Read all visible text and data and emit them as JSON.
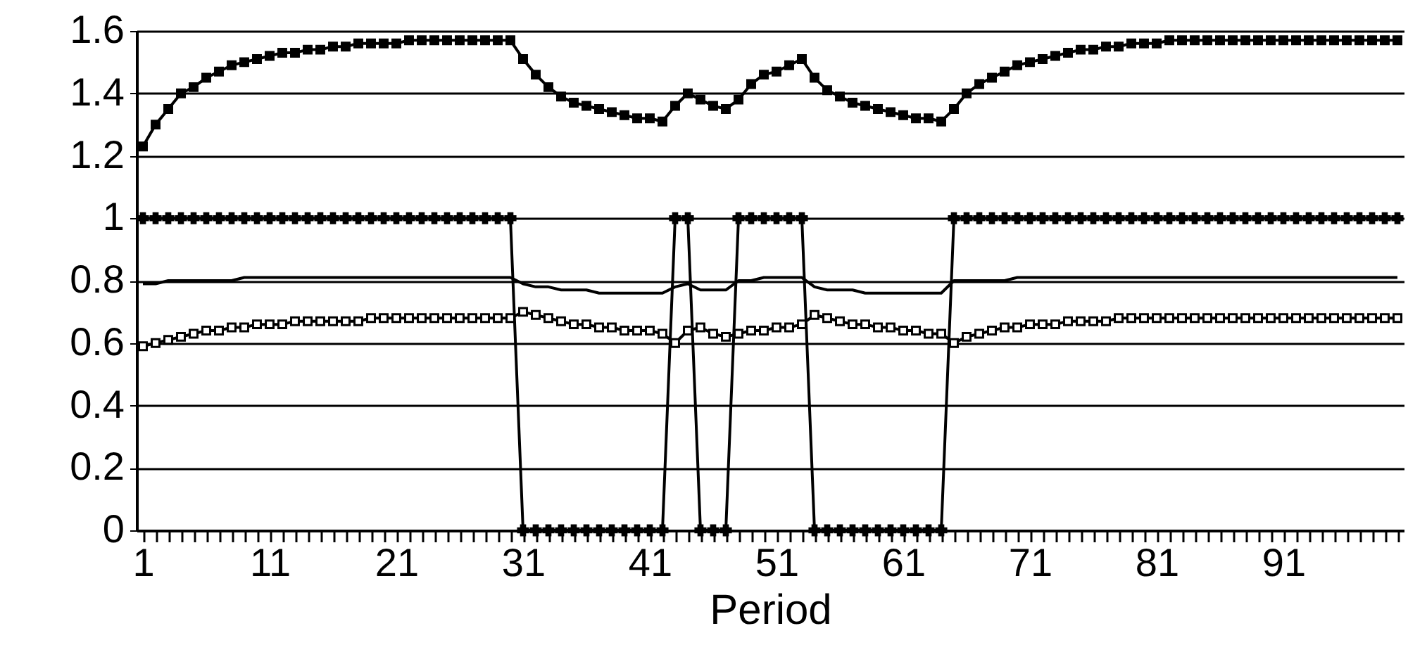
{
  "chart_data": {
    "type": "line",
    "xlabel": "Period",
    "categories": [
      "1",
      null,
      null,
      null,
      null,
      null,
      null,
      null,
      null,
      null,
      "11",
      null,
      null,
      null,
      null,
      null,
      null,
      null,
      null,
      null,
      "21",
      null,
      null,
      null,
      null,
      null,
      null,
      null,
      null,
      null,
      "31",
      null,
      null,
      null,
      null,
      null,
      null,
      null,
      null,
      null,
      "41",
      null,
      null,
      null,
      null,
      null,
      null,
      null,
      null,
      null,
      "51",
      null,
      null,
      null,
      null,
      null,
      null,
      null,
      null,
      null,
      "61",
      null,
      null,
      null,
      null,
      null,
      null,
      null,
      null,
      null,
      "71",
      null,
      null,
      null,
      null,
      null,
      null,
      null,
      null,
      null,
      "81",
      null,
      null,
      null,
      null,
      null,
      null,
      null,
      null,
      null,
      "91",
      null,
      null,
      null,
      null,
      null,
      null,
      null,
      null,
      null
    ],
    "series": [
      {
        "color": "#000000",
        "marker": "square",
        "values": [
          1.23,
          1.3,
          1.35,
          1.4,
          1.42,
          1.45,
          1.47,
          1.49,
          1.5,
          1.51,
          1.52,
          1.53,
          1.53,
          1.54,
          1.54,
          1.55,
          1.55,
          1.56,
          1.56,
          1.56,
          1.56,
          1.57,
          1.57,
          1.57,
          1.57,
          1.57,
          1.57,
          1.57,
          1.57,
          1.57,
          1.51,
          1.46,
          1.42,
          1.39,
          1.37,
          1.36,
          1.35,
          1.34,
          1.33,
          1.32,
          1.32,
          1.31,
          1.36,
          1.4,
          1.38,
          1.36,
          1.35,
          1.38,
          1.43,
          1.46,
          1.47,
          1.49,
          1.51,
          1.45,
          1.41,
          1.39,
          1.37,
          1.36,
          1.35,
          1.34,
          1.33,
          1.32,
          1.32,
          1.31,
          1.35,
          1.4,
          1.43,
          1.45,
          1.47,
          1.49,
          1.5,
          1.51,
          1.52,
          1.53,
          1.54,
          1.54,
          1.55,
          1.55,
          1.56,
          1.56,
          1.56,
          1.57,
          1.57,
          1.57,
          1.57,
          1.57,
          1.57,
          1.57,
          1.57,
          1.57,
          1.57,
          1.57,
          1.57,
          1.57,
          1.57,
          1.57,
          1.57,
          1.57,
          1.57,
          1.57
        ]
      },
      {
        "color": "#000000",
        "marker": "cross",
        "values": [
          1,
          1,
          1,
          1,
          1,
          1,
          1,
          1,
          1,
          1,
          1,
          1,
          1,
          1,
          1,
          1,
          1,
          1,
          1,
          1,
          1,
          1,
          1,
          1,
          1,
          1,
          1,
          1,
          1,
          1,
          0,
          0,
          0,
          0,
          0,
          0,
          0,
          0,
          0,
          0,
          0,
          0,
          1,
          1,
          0,
          0,
          0,
          1,
          1,
          1,
          1,
          1,
          1,
          0,
          0,
          0,
          0,
          0,
          0,
          0,
          0,
          0,
          0,
          0,
          1,
          1,
          1,
          1,
          1,
          1,
          1,
          1,
          1,
          1,
          1,
          1,
          1,
          1,
          1,
          1,
          1,
          1,
          1,
          1,
          1,
          1,
          1,
          1,
          1,
          1,
          1,
          1,
          1,
          1,
          1,
          1,
          1,
          1,
          1,
          1
        ]
      },
      {
        "color": "#000000",
        "marker": "none",
        "values": [
          0.79,
          0.79,
          0.8,
          0.8,
          0.8,
          0.8,
          0.8,
          0.8,
          0.81,
          0.81,
          0.81,
          0.81,
          0.81,
          0.81,
          0.81,
          0.81,
          0.81,
          0.81,
          0.81,
          0.81,
          0.81,
          0.81,
          0.81,
          0.81,
          0.81,
          0.81,
          0.81,
          0.81,
          0.81,
          0.81,
          0.79,
          0.78,
          0.78,
          0.77,
          0.77,
          0.77,
          0.76,
          0.76,
          0.76,
          0.76,
          0.76,
          0.76,
          0.78,
          0.79,
          0.77,
          0.77,
          0.77,
          0.8,
          0.8,
          0.81,
          0.81,
          0.81,
          0.81,
          0.78,
          0.77,
          0.77,
          0.77,
          0.76,
          0.76,
          0.76,
          0.76,
          0.76,
          0.76,
          0.76,
          0.8,
          0.8,
          0.8,
          0.8,
          0.8,
          0.81,
          0.81,
          0.81,
          0.81,
          0.81,
          0.81,
          0.81,
          0.81,
          0.81,
          0.81,
          0.81,
          0.81,
          0.81,
          0.81,
          0.81,
          0.81,
          0.81,
          0.81,
          0.81,
          0.81,
          0.81,
          0.81,
          0.81,
          0.81,
          0.81,
          0.81,
          0.81,
          0.81,
          0.81,
          0.81,
          0.81
        ]
      },
      {
        "color": "#000000",
        "marker": "square",
        "values": [
          0.59,
          0.6,
          0.61,
          0.62,
          0.63,
          0.64,
          0.64,
          0.65,
          0.65,
          0.66,
          0.66,
          0.66,
          0.67,
          0.67,
          0.67,
          0.67,
          0.67,
          0.67,
          0.68,
          0.68,
          0.68,
          0.68,
          0.68,
          0.68,
          0.68,
          0.68,
          0.68,
          0.68,
          0.68,
          0.68,
          0.7,
          0.69,
          0.68,
          0.67,
          0.66,
          0.66,
          0.65,
          0.65,
          0.64,
          0.64,
          0.64,
          0.63,
          0.6,
          0.64,
          0.65,
          0.63,
          0.62,
          0.63,
          0.64,
          0.64,
          0.65,
          0.65,
          0.66,
          0.69,
          0.68,
          0.67,
          0.66,
          0.66,
          0.65,
          0.65,
          0.64,
          0.64,
          0.63,
          0.63,
          0.6,
          0.62,
          0.63,
          0.64,
          0.65,
          0.65,
          0.66,
          0.66,
          0.66,
          0.67,
          0.67,
          0.67,
          0.67,
          0.68,
          0.68,
          0.68,
          0.68,
          0.68,
          0.68,
          0.68,
          0.68,
          0.68,
          0.68,
          0.68,
          0.68,
          0.68,
          0.68,
          0.68,
          0.68,
          0.68,
          0.68,
          0.68,
          0.68,
          0.68,
          0.68,
          0.68
        ]
      }
    ],
    "ylim": [
      0,
      1.6
    ],
    "yticks": [
      0,
      0.2,
      0.4,
      0.6,
      0.8,
      1,
      1.2,
      1.4,
      1.6
    ],
    "grid": "y"
  }
}
